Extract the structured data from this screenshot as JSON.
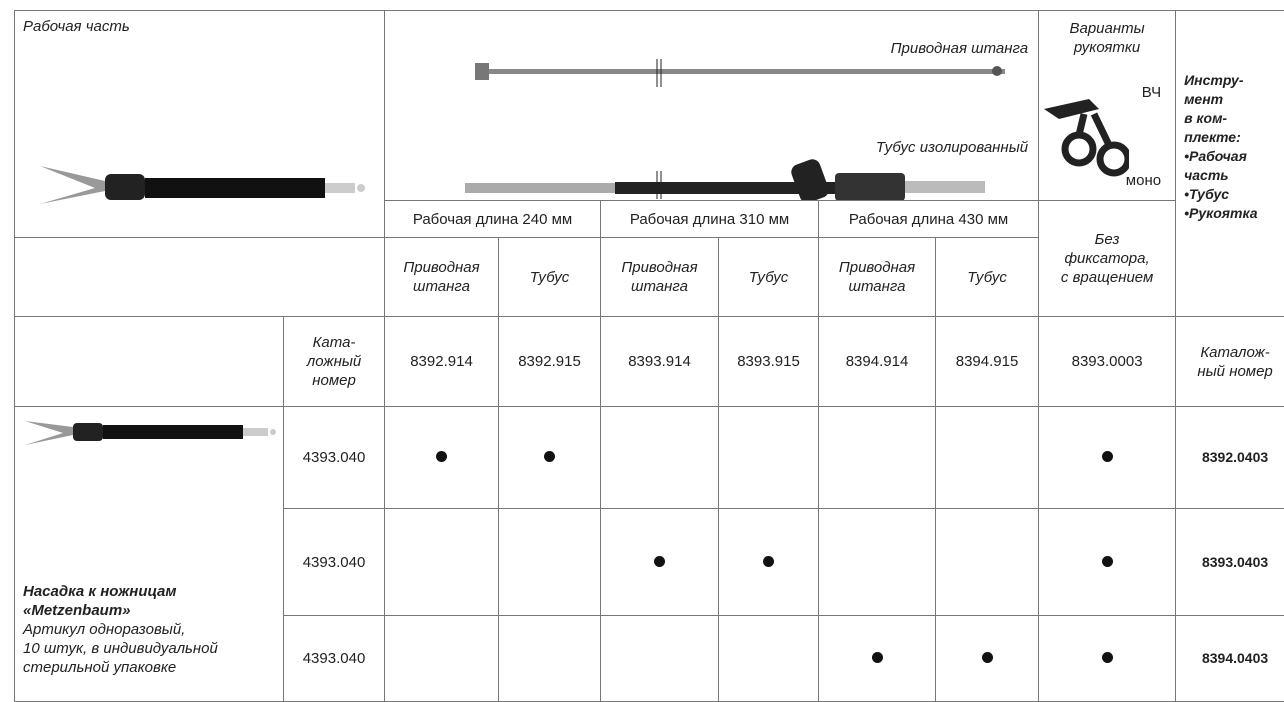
{
  "header": {
    "working_part": "Рабочая часть",
    "drive_rod": "Приводная штанга",
    "tube": "Тубус изолированный",
    "handle_variants": [
      "Варианты",
      "рукоятки"
    ],
    "hf": "ВЧ",
    "mono": "моно",
    "set_title": [
      "Инстру-",
      "мент",
      "в ком-",
      "плекте:"
    ],
    "set_items": [
      "•Рабочая",
      "часть",
      "•Тубус",
      "•Рукоятка"
    ]
  },
  "lengths": [
    "Рабочая длина 240 мм",
    "Рабочая длина 310 мм",
    "Рабочая длина 430 мм"
  ],
  "handle_type": [
    "Без",
    "фиксатора,",
    "с вращением"
  ],
  "subheaders": [
    [
      "Приводная",
      "штанга"
    ],
    [
      "Тубус"
    ],
    [
      "Приводная",
      "штанга"
    ],
    [
      "Тубус"
    ],
    [
      "Приводная",
      "штанга"
    ],
    [
      "Тубус"
    ]
  ],
  "catalog_label": [
    "Ката-",
    "ложный",
    "номер"
  ],
  "catalog_numbers": [
    "8392.914",
    "8392.915",
    "8393.914",
    "8393.915",
    "8394.914",
    "8394.915",
    "8393.0003"
  ],
  "catalog_label_right": [
    "Каталож-",
    "ный номер"
  ],
  "product": {
    "name": [
      "Насадка к ножницам",
      "«Metzenbaum»"
    ],
    "description": [
      "Артикул одноразовый,",
      "10 штук, в индивидуальной",
      "стерильной упаковке"
    ]
  },
  "rows": [
    {
      "part": "4393.040",
      "dots": [
        true,
        true,
        false,
        false,
        false,
        false,
        true
      ],
      "set": "8392.0403"
    },
    {
      "part": "4393.040",
      "dots": [
        false,
        false,
        true,
        true,
        false,
        false,
        true
      ],
      "set": "8393.0403"
    },
    {
      "part": "4393.040",
      "dots": [
        false,
        false,
        false,
        false,
        true,
        true,
        true
      ],
      "set": "8394.0403"
    }
  ]
}
